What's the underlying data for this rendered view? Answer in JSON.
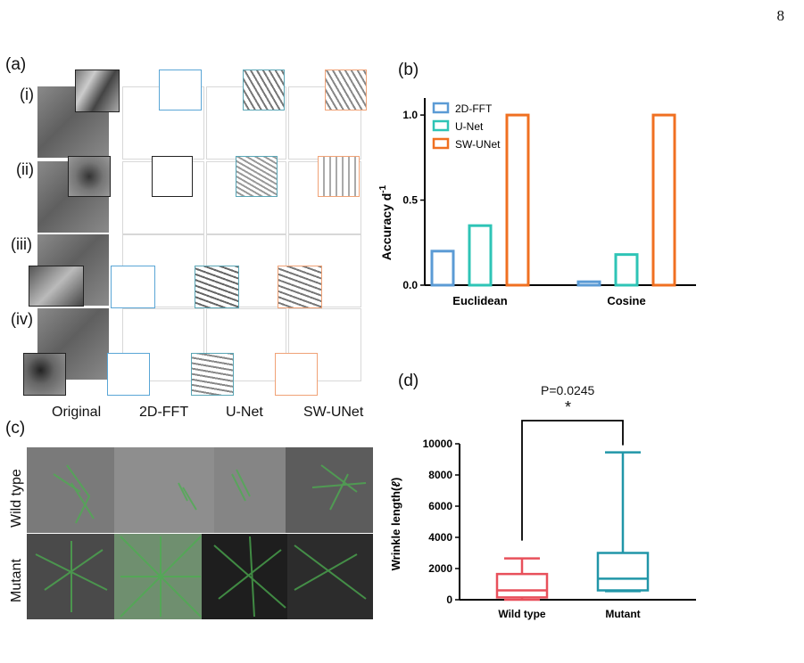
{
  "page_number": "8",
  "panels": {
    "a": {
      "label": "(a)",
      "row_labels": [
        "(i)",
        "(ii)",
        "(iii)",
        "(iv)"
      ],
      "column_labels": [
        "Original",
        "2D-FFT",
        "U-Net",
        "SW-UNet"
      ]
    },
    "b": {
      "label": "(b)"
    },
    "c": {
      "label": "(c)",
      "row_labels": [
        "Wild type",
        "Mutant"
      ]
    },
    "d": {
      "label": "(d)",
      "p_value": "P=0.0245",
      "significance": "*"
    }
  },
  "colors": {
    "fft": "#5b9bd5",
    "unet": "#2ec4b6",
    "swunet": "#f07021",
    "wild_type": "#e8505b",
    "mutant": "#2196a8"
  },
  "chart_data": [
    {
      "type": "bar",
      "title": "",
      "ylabel": "Accuracy d",
      "ylabel_sup": "-1",
      "xlabel": "",
      "categories": [
        "Euclidean",
        "Cosine"
      ],
      "series": [
        {
          "name": "2D-FFT",
          "values": [
            0.2,
            0.02
          ]
        },
        {
          "name": "U-Net",
          "values": [
            0.35,
            0.18
          ]
        },
        {
          "name": "SW-UNet",
          "values": [
            1.0,
            1.0
          ]
        }
      ],
      "ylim": [
        0,
        1.1
      ],
      "yticks": [
        "0.0",
        "0.5",
        "1.0"
      ],
      "legend": "top-left"
    },
    {
      "type": "box",
      "title": "",
      "ylabel": "Wrinkle length(",
      "ylabel_symbol": "ℓ",
      "ylabel_end": ")",
      "categories": [
        "Wild type",
        "Mutant"
      ],
      "boxes": [
        {
          "min": 0,
          "q1": 150,
          "median": 600,
          "q3": 1650,
          "max": 2650
        },
        {
          "min": 550,
          "q1": 600,
          "median": 1350,
          "q3": 3000,
          "max": 9450
        }
      ],
      "ylim": [
        0,
        10000
      ],
      "yticks": [
        "0",
        "2000",
        "4000",
        "6000",
        "8000",
        "10000"
      ]
    }
  ]
}
